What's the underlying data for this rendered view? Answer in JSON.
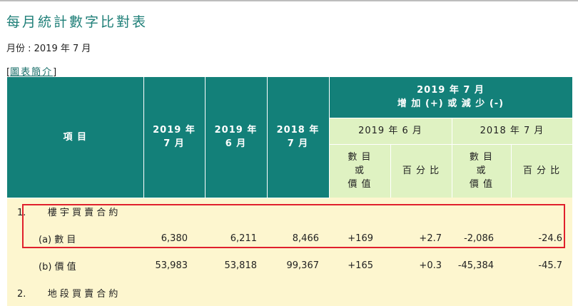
{
  "page": {
    "title": "每月統計數字比對表",
    "month_label": "月份 : 2019 年 7 月",
    "intro_open": "[",
    "intro_link": "圖表簡介",
    "intro_close": "]"
  },
  "table": {
    "header": {
      "item": "項 目",
      "col1_line1": "2019 年",
      "col1_line2": "7 月",
      "col2_line1": "2019 年",
      "col2_line2": "6 月",
      "col3_line1": "2018 年",
      "col3_line2": "7 月",
      "change_line1": "2019 年 7 月",
      "change_line2": "增 加 (+) 或 減 少 (-)",
      "vs_prev_month": "2019 年 6 月",
      "vs_prev_year": "2018 年 7 月",
      "sub_count_1": "數 目",
      "sub_count_2": "或",
      "sub_count_3": "價 值",
      "sub_pct": "百 分 比"
    },
    "rows": [
      {
        "no": "1.",
        "label": "樓 宇 買 賣 合 約"
      },
      {
        "label": "(a) 數 目",
        "v1": "6,380",
        "v2": "6,211",
        "v3": "8,466",
        "m_val": "+169",
        "m_pct": "+2.7",
        "y_val": "-2,086",
        "y_pct": "-24.6"
      },
      {
        "label": "(b) 價 值",
        "v1": "53,983",
        "v2": "53,818",
        "v3": "99,367",
        "m_val": "+165",
        "m_pct": "+0.3",
        "y_val": "-45,384",
        "y_pct": "-45.7"
      },
      {
        "no": "2.",
        "label": "地 段 買 賣 合 約"
      }
    ]
  }
}
